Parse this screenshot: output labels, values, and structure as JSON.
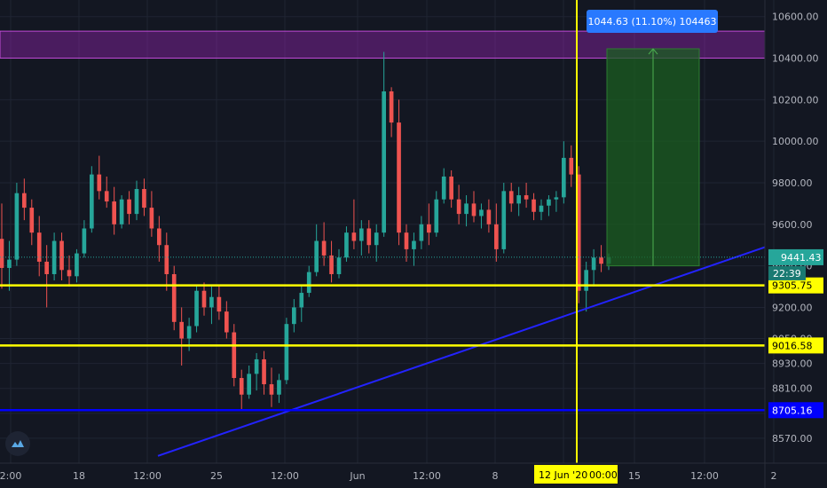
{
  "chart_data": {
    "type": "candlestick",
    "title": "",
    "xlabel": "",
    "ylabel": "",
    "ylim": [
      8450,
      10680
    ],
    "x_ticks": [
      "2:00",
      "18",
      "12:00",
      "25",
      "12:00",
      "Jun",
      "12:00",
      "8",
      "12:00",
      "15",
      "12:00",
      "2"
    ],
    "y_ticks": [
      "10600.00",
      "10400.00",
      "10200.00",
      "10000.00",
      "9800.00",
      "9600.00",
      "9400.00",
      "9200.00",
      "9050.00",
      "8930.00",
      "8810.00",
      "8690.00",
      "8570.00"
    ],
    "y_tick_values": [
      10600,
      10400,
      10200,
      10000,
      9800,
      9600,
      9400,
      9200,
      9050,
      8930,
      8810,
      8690,
      8570
    ],
    "last_price": "9441.43",
    "countdown": "22:39",
    "crosshair_date": "12 Jun '20",
    "crosshair_time": "00:00",
    "levels": [
      {
        "value": 9305.75,
        "label": "9305.75",
        "color": "#ffff00"
      },
      {
        "value": 9016.58,
        "label": "9016.58",
        "color": "#ffff00"
      },
      {
        "value": 8705.16,
        "label": "8705.16",
        "color": "#0000ff"
      }
    ],
    "resistance_zone": [
      10400,
      10530
    ],
    "measure": {
      "from": 9400,
      "to": 10445,
      "label": "1044.63 (11.10%) 104463"
    },
    "trendline": {
      "from": 8485,
      "to": 9490
    },
    "colors": {
      "up": "#26a69a",
      "down": "#ef5350",
      "zone": "#8e24aa",
      "trend": "#2323ff",
      "measure_fill": "#1b5e20"
    },
    "candles": [
      {
        "o": 9530,
        "h": 9700,
        "l": 9290,
        "c": 9390
      },
      {
        "o": 9390,
        "h": 9520,
        "l": 9280,
        "c": 9430
      },
      {
        "o": 9430,
        "h": 9800,
        "l": 9400,
        "c": 9750
      },
      {
        "o": 9750,
        "h": 9820,
        "l": 9620,
        "c": 9680
      },
      {
        "o": 9680,
        "h": 9720,
        "l": 9500,
        "c": 9560
      },
      {
        "o": 9560,
        "h": 9640,
        "l": 9350,
        "c": 9420
      },
      {
        "o": 9420,
        "h": 9500,
        "l": 9200,
        "c": 9360
      },
      {
        "o": 9360,
        "h": 9560,
        "l": 9330,
        "c": 9520
      },
      {
        "o": 9520,
        "h": 9560,
        "l": 9330,
        "c": 9380
      },
      {
        "o": 9380,
        "h": 9450,
        "l": 9300,
        "c": 9350
      },
      {
        "o": 9350,
        "h": 9480,
        "l": 9320,
        "c": 9460
      },
      {
        "o": 9460,
        "h": 9620,
        "l": 9440,
        "c": 9580
      },
      {
        "o": 9580,
        "h": 9880,
        "l": 9560,
        "c": 9840
      },
      {
        "o": 9840,
        "h": 9930,
        "l": 9720,
        "c": 9760
      },
      {
        "o": 9760,
        "h": 9830,
        "l": 9680,
        "c": 9710
      },
      {
        "o": 9710,
        "h": 9780,
        "l": 9550,
        "c": 9600
      },
      {
        "o": 9600,
        "h": 9740,
        "l": 9580,
        "c": 9720
      },
      {
        "o": 9720,
        "h": 9760,
        "l": 9600,
        "c": 9650
      },
      {
        "o": 9650,
        "h": 9810,
        "l": 9620,
        "c": 9770
      },
      {
        "o": 9770,
        "h": 9820,
        "l": 9640,
        "c": 9680
      },
      {
        "o": 9680,
        "h": 9760,
        "l": 9540,
        "c": 9580
      },
      {
        "o": 9580,
        "h": 9640,
        "l": 9420,
        "c": 9500
      },
      {
        "o": 9500,
        "h": 9560,
        "l": 9280,
        "c": 9360
      },
      {
        "o": 9360,
        "h": 9400,
        "l": 9090,
        "c": 9130
      },
      {
        "o": 9130,
        "h": 9200,
        "l": 8920,
        "c": 9050
      },
      {
        "o": 9050,
        "h": 9150,
        "l": 8990,
        "c": 9110
      },
      {
        "o": 9110,
        "h": 9310,
        "l": 9080,
        "c": 9280
      },
      {
        "o": 9280,
        "h": 9320,
        "l": 9160,
        "c": 9200
      },
      {
        "o": 9200,
        "h": 9300,
        "l": 9120,
        "c": 9250
      },
      {
        "o": 9250,
        "h": 9310,
        "l": 9140,
        "c": 9180
      },
      {
        "o": 9180,
        "h": 9230,
        "l": 9050,
        "c": 9080
      },
      {
        "o": 9080,
        "h": 9120,
        "l": 8820,
        "c": 8860
      },
      {
        "o": 8860,
        "h": 8900,
        "l": 8710,
        "c": 8780
      },
      {
        "o": 8780,
        "h": 8920,
        "l": 8760,
        "c": 8880
      },
      {
        "o": 8880,
        "h": 8980,
        "l": 8800,
        "c": 8950
      },
      {
        "o": 8950,
        "h": 8990,
        "l": 8780,
        "c": 8830
      },
      {
        "o": 8830,
        "h": 8910,
        "l": 8720,
        "c": 8780
      },
      {
        "o": 8780,
        "h": 8880,
        "l": 8740,
        "c": 8850
      },
      {
        "o": 8850,
        "h": 9150,
        "l": 8830,
        "c": 9120
      },
      {
        "o": 9120,
        "h": 9240,
        "l": 9080,
        "c": 9200
      },
      {
        "o": 9200,
        "h": 9310,
        "l": 9130,
        "c": 9270
      },
      {
        "o": 9270,
        "h": 9400,
        "l": 9250,
        "c": 9370
      },
      {
        "o": 9370,
        "h": 9600,
        "l": 9350,
        "c": 9520
      },
      {
        "o": 9520,
        "h": 9610,
        "l": 9400,
        "c": 9450
      },
      {
        "o": 9450,
        "h": 9520,
        "l": 9320,
        "c": 9360
      },
      {
        "o": 9360,
        "h": 9480,
        "l": 9340,
        "c": 9440
      },
      {
        "o": 9440,
        "h": 9590,
        "l": 9420,
        "c": 9560
      },
      {
        "o": 9560,
        "h": 9720,
        "l": 9480,
        "c": 9520
      },
      {
        "o": 9520,
        "h": 9620,
        "l": 9450,
        "c": 9580
      },
      {
        "o": 9580,
        "h": 9620,
        "l": 9460,
        "c": 9500
      },
      {
        "o": 9500,
        "h": 9600,
        "l": 9420,
        "c": 9560
      },
      {
        "o": 9560,
        "h": 10430,
        "l": 9540,
        "c": 10240
      },
      {
        "o": 10240,
        "h": 10260,
        "l": 10020,
        "c": 10090
      },
      {
        "o": 10090,
        "h": 10200,
        "l": 9500,
        "c": 9560
      },
      {
        "o": 9560,
        "h": 9600,
        "l": 9420,
        "c": 9480
      },
      {
        "o": 9480,
        "h": 9560,
        "l": 9400,
        "c": 9520
      },
      {
        "o": 9520,
        "h": 9640,
        "l": 9480,
        "c": 9600
      },
      {
        "o": 9600,
        "h": 9700,
        "l": 9500,
        "c": 9560
      },
      {
        "o": 9560,
        "h": 9760,
        "l": 9540,
        "c": 9720
      },
      {
        "o": 9720,
        "h": 9870,
        "l": 9700,
        "c": 9830
      },
      {
        "o": 9830,
        "h": 9860,
        "l": 9680,
        "c": 9720
      },
      {
        "o": 9720,
        "h": 9790,
        "l": 9600,
        "c": 9650
      },
      {
        "o": 9650,
        "h": 9740,
        "l": 9590,
        "c": 9700
      },
      {
        "o": 9700,
        "h": 9760,
        "l": 9610,
        "c": 9640
      },
      {
        "o": 9640,
        "h": 9700,
        "l": 9580,
        "c": 9670
      },
      {
        "o": 9670,
        "h": 9720,
        "l": 9560,
        "c": 9600
      },
      {
        "o": 9600,
        "h": 9700,
        "l": 9420,
        "c": 9480
      },
      {
        "o": 9480,
        "h": 9800,
        "l": 9460,
        "c": 9760
      },
      {
        "o": 9760,
        "h": 9800,
        "l": 9660,
        "c": 9700
      },
      {
        "o": 9700,
        "h": 9780,
        "l": 9640,
        "c": 9740
      },
      {
        "o": 9740,
        "h": 9800,
        "l": 9680,
        "c": 9720
      },
      {
        "o": 9720,
        "h": 9750,
        "l": 9620,
        "c": 9660
      },
      {
        "o": 9660,
        "h": 9720,
        "l": 9620,
        "c": 9690
      },
      {
        "o": 9690,
        "h": 9740,
        "l": 9640,
        "c": 9720
      },
      {
        "o": 9720,
        "h": 9760,
        "l": 9660,
        "c": 9730
      },
      {
        "o": 9730,
        "h": 10000,
        "l": 9700,
        "c": 9920
      },
      {
        "o": 9920,
        "h": 9980,
        "l": 9780,
        "c": 9840
      },
      {
        "o": 9840,
        "h": 9880,
        "l": 9220,
        "c": 9280
      },
      {
        "o": 9280,
        "h": 9420,
        "l": 9180,
        "c": 9380
      },
      {
        "o": 9380,
        "h": 9480,
        "l": 9300,
        "c": 9440
      },
      {
        "o": 9440,
        "h": 9500,
        "l": 9370,
        "c": 9410
      },
      {
        "o": 9410,
        "h": 9460,
        "l": 9380,
        "c": 9441
      }
    ]
  }
}
